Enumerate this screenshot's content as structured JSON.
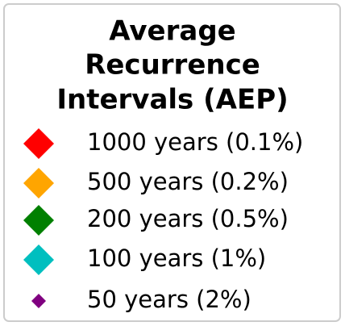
{
  "legend": {
    "title": [
      "Average",
      "Recurrence",
      "Intervals (AEP)"
    ],
    "items": [
      {
        "label": "1000 years (0.1%)",
        "color": "#ff0000"
      },
      {
        "label": "500 years (0.2%)",
        "color": "#ffa500"
      },
      {
        "label": "200 years (0.5%)",
        "color": "#008000"
      },
      {
        "label": "100 years (1%)",
        "color": "#00bfbf"
      },
      {
        "label": "50 years (2%)",
        "color": "#800080"
      }
    ]
  }
}
